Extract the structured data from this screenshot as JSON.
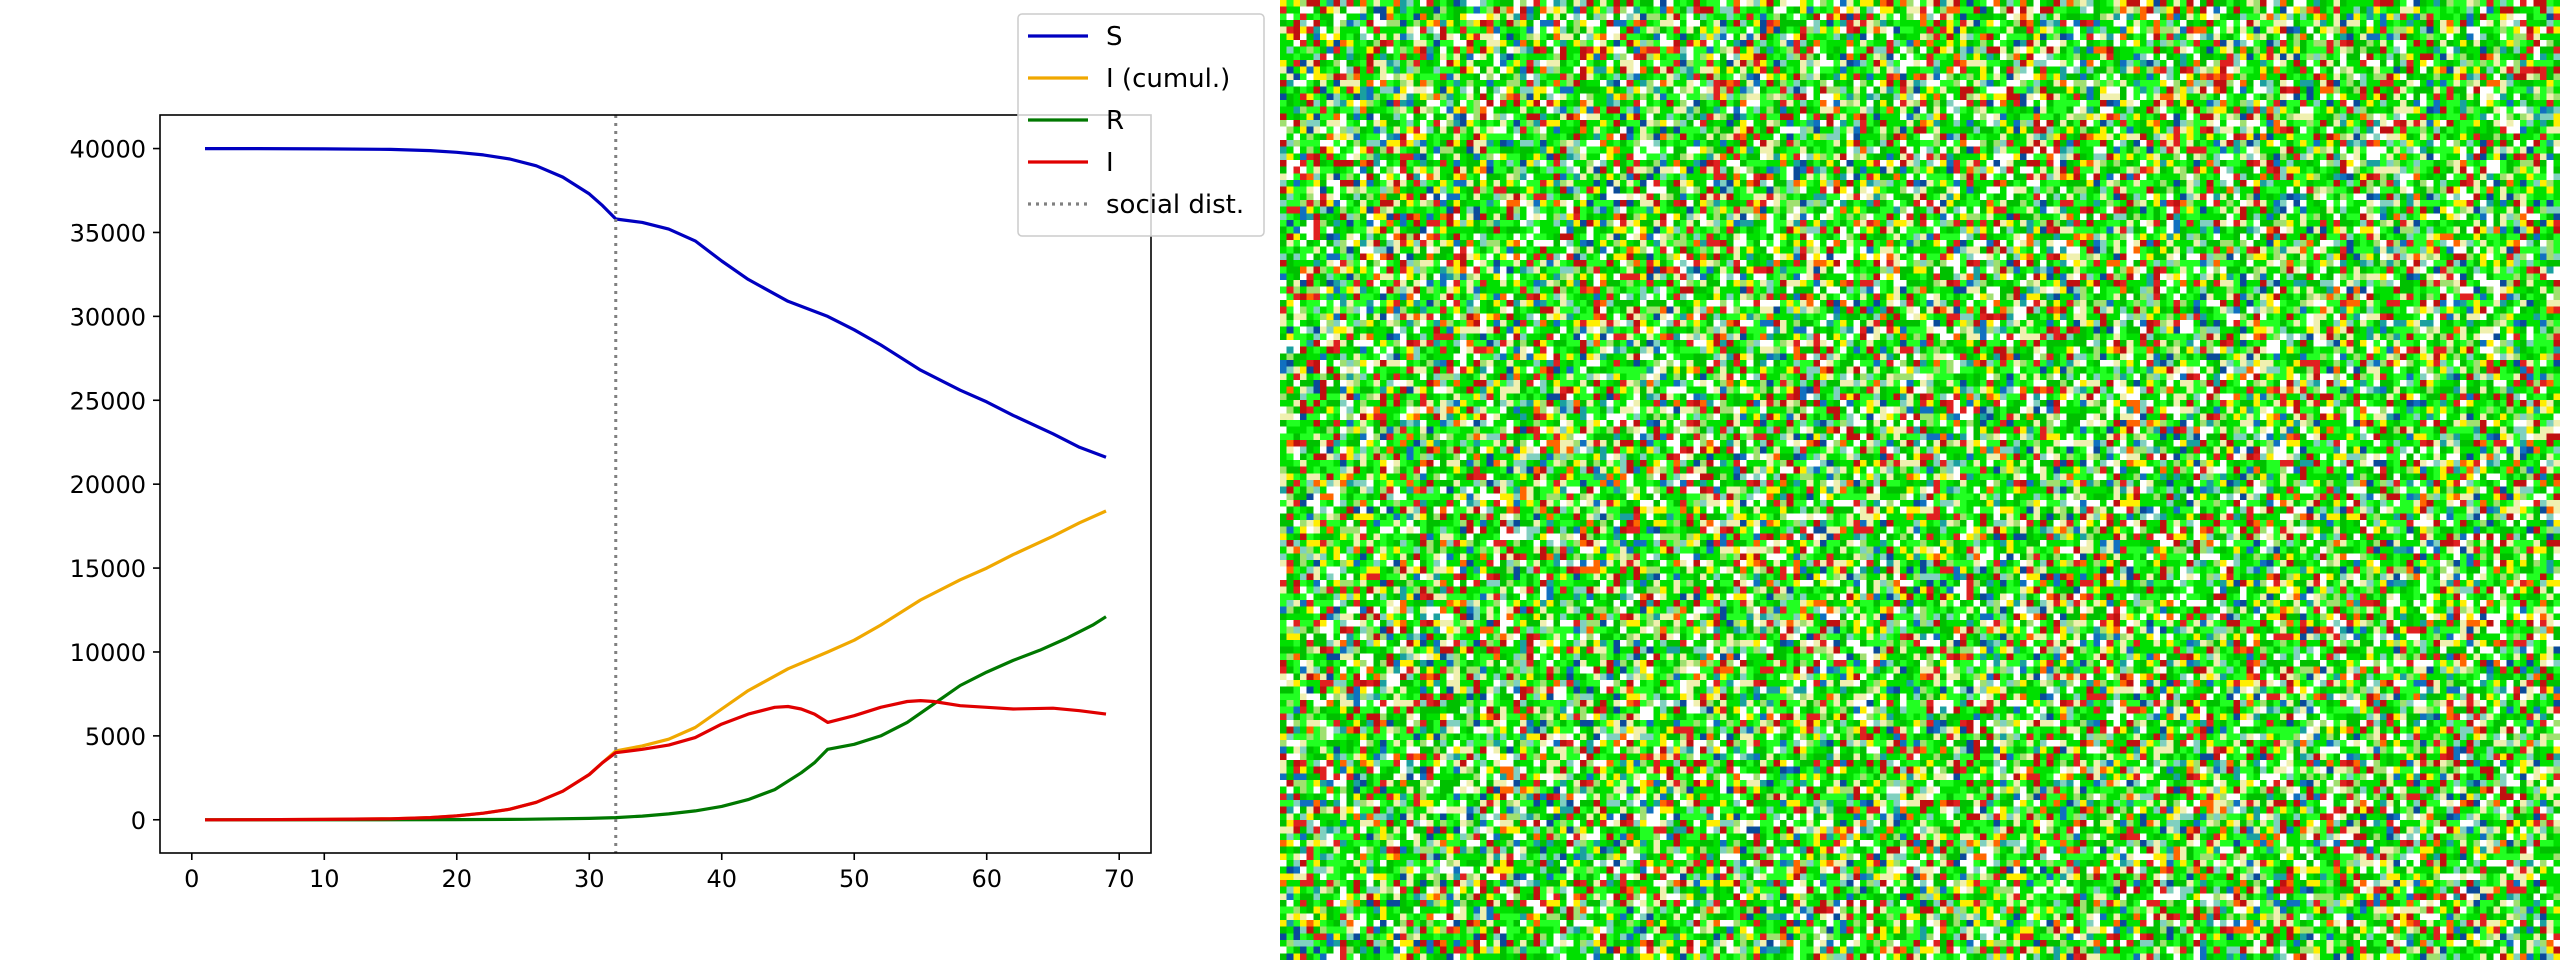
{
  "chart_data": {
    "type": "line",
    "title": "",
    "xlabel": "",
    "ylabel": "",
    "xlim": [
      -2.4,
      72.4
    ],
    "ylim": [
      -1980,
      42000
    ],
    "grid": false,
    "legend_position": "top-right",
    "xticks": [
      0,
      10,
      20,
      30,
      40,
      50,
      60,
      70
    ],
    "yticks": [
      0,
      5000,
      10000,
      15000,
      20000,
      25000,
      30000,
      35000,
      40000
    ],
    "xtick_labels": [
      "0",
      "10",
      "20",
      "30",
      "40",
      "50",
      "60",
      "70"
    ],
    "ytick_labels": [
      "0",
      "5000",
      "10000",
      "15000",
      "20000",
      "25000",
      "30000",
      "35000",
      "40000"
    ],
    "vline": {
      "x": 32,
      "name": "social dist.",
      "color": "#808080",
      "style": "dotted"
    },
    "series": [
      {
        "name": "S",
        "color": "#0000c0",
        "x": [
          1,
          5,
          10,
          15,
          18,
          20,
          22,
          24,
          26,
          28,
          30,
          31,
          32,
          34,
          36,
          38,
          40,
          42,
          45,
          48,
          50,
          52,
          55,
          58,
          60,
          62,
          65,
          67,
          69
        ],
        "y": [
          40000,
          40000,
          39980,
          39950,
          39880,
          39780,
          39620,
          39380,
          38970,
          38300,
          37300,
          36600,
          35800,
          35600,
          35200,
          34500,
          33300,
          32200,
          30900,
          30000,
          29200,
          28300,
          26800,
          25600,
          24900,
          24100,
          23000,
          22200,
          21600
        ]
      },
      {
        "name": "I (cumul.)",
        "color": "#f0a800",
        "x": [
          1,
          5,
          10,
          15,
          18,
          20,
          22,
          24,
          26,
          28,
          30,
          31,
          32,
          34,
          36,
          38,
          40,
          42,
          45,
          48,
          50,
          52,
          55,
          58,
          60,
          62,
          65,
          67,
          69
        ],
        "y": [
          0,
          5,
          20,
          60,
          130,
          230,
          390,
          630,
          1040,
          1700,
          2700,
          3400,
          4100,
          4400,
          4800,
          5500,
          6600,
          7700,
          9000,
          10000,
          10700,
          11600,
          13100,
          14300,
          15000,
          15800,
          16900,
          17700,
          18400
        ]
      },
      {
        "name": "R",
        "color": "#007800",
        "x": [
          1,
          10,
          20,
          25,
          30,
          32,
          34,
          36,
          38,
          40,
          42,
          44,
          46,
          47,
          48,
          50,
          52,
          54,
          56,
          58,
          60,
          62,
          64,
          66,
          68,
          69
        ],
        "y": [
          0,
          0,
          10,
          30,
          80,
          130,
          220,
          350,
          530,
          800,
          1200,
          1800,
          2800,
          3400,
          4200,
          4500,
          5000,
          5800,
          6900,
          8000,
          8800,
          9500,
          10100,
          10800,
          11600,
          12100
        ]
      },
      {
        "name": "I",
        "color": "#e00000",
        "x": [
          1,
          5,
          10,
          15,
          18,
          20,
          22,
          24,
          26,
          28,
          30,
          31,
          32,
          34,
          36,
          38,
          40,
          42,
          44,
          45,
          46,
          47,
          48,
          50,
          52,
          54,
          55,
          56,
          58,
          60,
          62,
          65,
          67,
          69
        ],
        "y": [
          0,
          5,
          20,
          60,
          130,
          230,
          390,
          630,
          1040,
          1700,
          2700,
          3400,
          4000,
          4200,
          4450,
          4900,
          5700,
          6300,
          6700,
          6750,
          6600,
          6300,
          5800,
          6200,
          6700,
          7050,
          7100,
          7050,
          6800,
          6700,
          6600,
          6650,
          6500,
          6300
        ]
      }
    ]
  },
  "legend": [
    {
      "label": "S",
      "color": "#0000c0",
      "style": "solid"
    },
    {
      "label": "I (cumul.)",
      "color": "#f0a800",
      "style": "solid"
    },
    {
      "label": "R",
      "color": "#007800",
      "style": "solid"
    },
    {
      "label": "I",
      "color": "#e00000",
      "style": "solid"
    },
    {
      "label": "social dist.",
      "color": "#808080",
      "style": "dotted"
    }
  ],
  "noise_panel": {
    "colors": [
      "#00e000",
      "#22ff22",
      "#00c000",
      "#ffffff",
      "#f0f0b0",
      "#ffee00",
      "#c01010",
      "#e02020",
      "#ff6600",
      "#80d0c0",
      "#1aa0a0",
      "#1070c0",
      "#0a4a9a",
      "#a0e070"
    ]
  }
}
